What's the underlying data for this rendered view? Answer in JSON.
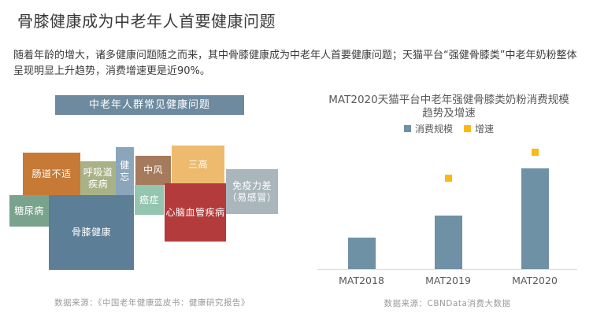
{
  "page": {
    "title": "骨膝健康成为中老年人首要健康问题",
    "intro": "随着年龄的增大，诸多健康问题随之而来，其中骨膝健康成为中老年人首要健康问题；天猫平台“强健骨膝类”中老年奶粉整体呈现明显上升趋势，消费增速更是近90%。"
  },
  "treemap": {
    "title": "中老年人群常见健康问题",
    "title_bg": "#6d8a9e",
    "source": "数据来源：《中国老年健康蓝皮书：健康研究报告》",
    "blocks": [
      {
        "label": "肠道不适",
        "color": "#c77a35"
      },
      {
        "label": "呼吸道疾病",
        "color": "#a9b287"
      },
      {
        "label": "健忘",
        "color": "#8ba6ba"
      },
      {
        "label": "中风",
        "color": "#a67a5c"
      },
      {
        "label": "三高",
        "color": "#eeba6e"
      },
      {
        "label": "免疫力差\n（易感冒）",
        "color": "#a9b6bc"
      },
      {
        "label": "糖尿病",
        "color": "#7aa38e"
      },
      {
        "label": "癌症",
        "color": "#94c5b1"
      },
      {
        "label": "心脑血管疾病",
        "color": "#b43b3b"
      },
      {
        "label": "骨膝健康",
        "color": "#5d7e97"
      }
    ]
  },
  "chart": {
    "source": "数据来源：CBNData消费大数据"
  },
  "chart_data": {
    "type": "bar",
    "title": "MAT2020天猫平台中老年强健骨膝类奶粉消费规模趋势及增速",
    "categories": [
      "MAT2018",
      "MAT2019",
      "MAT2020"
    ],
    "series": [
      {
        "name": "消费规模",
        "type": "bar",
        "values": [
          1.0,
          1.7,
          3.2
        ],
        "unit": "relative index, MAT2018 = 1 (no value axis shown; estimated from bar heights)"
      },
      {
        "name": "增速",
        "type": "point",
        "values": [
          null,
          70,
          90
        ],
        "unit": "percent (estimated; intro text states MAT2020 growth near 90%)"
      }
    ],
    "colors": {
      "bar": "#6e91a6",
      "marker": "#fdb813"
    },
    "legend_position": "top",
    "grid": false,
    "value_axis": "hidden"
  }
}
